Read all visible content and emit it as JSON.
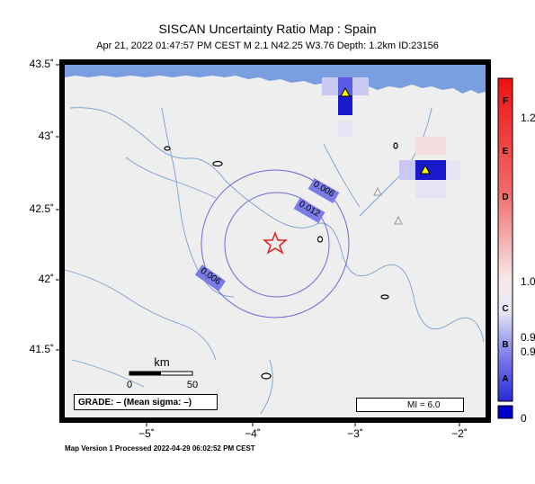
{
  "map": {
    "title": "SISCAN Uncertainty Ratio Map : Spain",
    "subtitle": "Apr 21, 2022 01:47:57 PM CEST   M 2.1   N42.25 W3.76   Depth: 1.2km   ID:23156",
    "lat_labels": [
      "43.5˚",
      "43˚",
      "42.5˚",
      "42˚",
      "41.5˚"
    ],
    "lon_labels": [
      "−5˚",
      "−4˚",
      "−3˚",
      "−2˚"
    ],
    "contour_labels": [
      "0.006",
      "0.012",
      "0.006"
    ],
    "scale_bar": {
      "title": "km",
      "tick_start": "0",
      "tick_end": "50"
    },
    "grade_label": "GRADE: – (Mean sigma: –)",
    "mi_label": "MI = 6.0",
    "footer": "Map Version 1 Processed 2022-04-29 06:02:52 PM CEST",
    "colors": {
      "sea": "#7b9ee0",
      "land": "#eeeeee",
      "contour": "#6a6ad8",
      "river": "#7a9fd0",
      "epicenter": "#e02020",
      "cell_dark": "#1a1acc",
      "cell_mid": "#5a5ae6",
      "cell_light": "#c8c8f2",
      "cell_faint": "#e4e4f4",
      "cell_pink": "#f2dede",
      "station": "#ffff00"
    }
  },
  "colorbar": {
    "letters": [
      "F",
      "E",
      "D",
      "C",
      "B",
      "A"
    ],
    "values": [
      "1.2",
      "1.0",
      "0.9",
      "0.9",
      "0"
    ]
  }
}
